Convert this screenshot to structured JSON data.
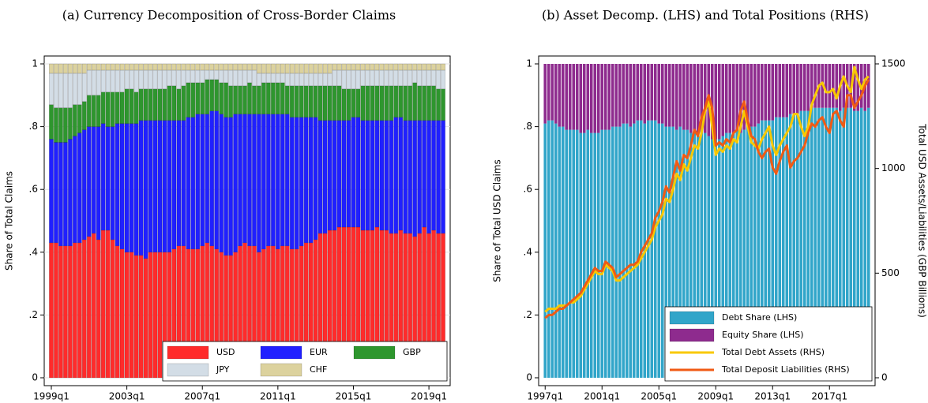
{
  "chart_data": [
    {
      "type": "bar",
      "stacked": true,
      "title": "(a)  Currency Decomposition of Cross-Border Claims",
      "y_label": "Share of Total Claims",
      "grid": true,
      "legend": "lower right",
      "legend_columns": 3,
      "ylim": [
        0,
        1
      ],
      "yticks": [
        0,
        {
          "value": 0.2,
          "label": ".2"
        },
        {
          "value": 0.4,
          "label": ".4"
        },
        {
          "value": 0.6,
          "label": ".6"
        },
        {
          "value": 0.8,
          "label": ".8"
        },
        1
      ],
      "categories": [
        "1999q1",
        null,
        null,
        null,
        null,
        null,
        null,
        null,
        null,
        null,
        null,
        null,
        null,
        null,
        null,
        null,
        "2003q1",
        null,
        null,
        null,
        null,
        null,
        null,
        null,
        null,
        null,
        null,
        null,
        null,
        null,
        null,
        null,
        "2007q1",
        null,
        null,
        null,
        null,
        null,
        null,
        null,
        null,
        null,
        null,
        null,
        null,
        null,
        null,
        null,
        "2011q1",
        null,
        null,
        null,
        null,
        null,
        null,
        null,
        null,
        null,
        null,
        null,
        null,
        null,
        null,
        null,
        "2015q1",
        null,
        null,
        null,
        null,
        null,
        null,
        null,
        null,
        null,
        null,
        null,
        null,
        null,
        null,
        null,
        "2019q1",
        null,
        null,
        null
      ],
      "series": [
        {
          "name": "USD",
          "color": "#ff2b2b",
          "values": [
            0.43,
            0.43,
            0.42,
            0.42,
            0.42,
            0.43,
            0.43,
            0.44,
            0.45,
            0.46,
            0.44,
            0.47,
            0.47,
            0.44,
            0.42,
            0.41,
            0.4,
            0.4,
            0.39,
            0.39,
            0.38,
            0.4,
            0.4,
            0.4,
            0.4,
            0.4,
            0.41,
            0.42,
            0.42,
            0.41,
            0.41,
            0.41,
            0.42,
            0.43,
            0.42,
            0.41,
            0.4,
            0.39,
            0.39,
            0.4,
            0.42,
            0.43,
            0.42,
            0.42,
            0.4,
            0.41,
            0.42,
            0.42,
            0.41,
            0.42,
            0.42,
            0.41,
            0.41,
            0.42,
            0.43,
            0.43,
            0.44,
            0.46,
            0.46,
            0.47,
            0.47,
            0.48,
            0.48,
            0.48,
            0.48,
            0.48,
            0.47,
            0.47,
            0.47,
            0.48,
            0.47,
            0.47,
            0.46,
            0.46,
            0.47,
            0.46,
            0.46,
            0.45,
            0.46,
            0.48,
            0.46,
            0.47,
            0.46,
            0.46
          ]
        },
        {
          "name": "EUR",
          "color": "#2020ff",
          "values": [
            0.33,
            0.32,
            0.33,
            0.33,
            0.34,
            0.34,
            0.35,
            0.35,
            0.35,
            0.34,
            0.36,
            0.34,
            0.33,
            0.36,
            0.39,
            0.4,
            0.41,
            0.41,
            0.42,
            0.43,
            0.44,
            0.42,
            0.42,
            0.42,
            0.42,
            0.42,
            0.41,
            0.4,
            0.4,
            0.42,
            0.42,
            0.43,
            0.42,
            0.41,
            0.43,
            0.44,
            0.44,
            0.44,
            0.44,
            0.44,
            0.42,
            0.41,
            0.42,
            0.42,
            0.44,
            0.43,
            0.42,
            0.42,
            0.43,
            0.42,
            0.42,
            0.42,
            0.42,
            0.41,
            0.4,
            0.4,
            0.39,
            0.36,
            0.36,
            0.35,
            0.35,
            0.34,
            0.34,
            0.34,
            0.35,
            0.35,
            0.35,
            0.35,
            0.35,
            0.34,
            0.35,
            0.35,
            0.36,
            0.37,
            0.36,
            0.36,
            0.36,
            0.37,
            0.36,
            0.34,
            0.36,
            0.35,
            0.36,
            0.36
          ]
        },
        {
          "name": "GBP",
          "color": "#2e962e",
          "values": [
            0.11,
            0.11,
            0.11,
            0.11,
            0.1,
            0.1,
            0.09,
            0.09,
            0.1,
            0.1,
            0.1,
            0.1,
            0.11,
            0.11,
            0.1,
            0.1,
            0.11,
            0.11,
            0.1,
            0.1,
            0.1,
            0.1,
            0.1,
            0.1,
            0.1,
            0.11,
            0.11,
            0.1,
            0.11,
            0.11,
            0.11,
            0.1,
            0.1,
            0.11,
            0.1,
            0.1,
            0.1,
            0.11,
            0.1,
            0.09,
            0.09,
            0.09,
            0.1,
            0.09,
            0.09,
            0.1,
            0.1,
            0.1,
            0.1,
            0.1,
            0.09,
            0.1,
            0.1,
            0.1,
            0.1,
            0.1,
            0.1,
            0.11,
            0.11,
            0.11,
            0.11,
            0.11,
            0.1,
            0.1,
            0.09,
            0.09,
            0.11,
            0.11,
            0.11,
            0.11,
            0.11,
            0.11,
            0.11,
            0.1,
            0.1,
            0.11,
            0.11,
            0.12,
            0.11,
            0.11,
            0.11,
            0.11,
            0.1,
            0.1
          ]
        },
        {
          "name": "JPY",
          "color": "#d3dde6",
          "values": [
            0.1,
            0.11,
            0.11,
            0.11,
            0.11,
            0.1,
            0.1,
            0.09,
            0.08,
            0.08,
            0.08,
            0.07,
            0.07,
            0.07,
            0.07,
            0.07,
            0.06,
            0.06,
            0.07,
            0.06,
            0.06,
            0.06,
            0.06,
            0.06,
            0.06,
            0.05,
            0.05,
            0.06,
            0.05,
            0.04,
            0.04,
            0.04,
            0.04,
            0.03,
            0.03,
            0.03,
            0.04,
            0.04,
            0.05,
            0.05,
            0.05,
            0.05,
            0.04,
            0.05,
            0.04,
            0.03,
            0.03,
            0.03,
            0.03,
            0.03,
            0.04,
            0.04,
            0.04,
            0.04,
            0.04,
            0.04,
            0.04,
            0.04,
            0.04,
            0.04,
            0.05,
            0.05,
            0.06,
            0.06,
            0.06,
            0.06,
            0.05,
            0.05,
            0.05,
            0.05,
            0.05,
            0.05,
            0.05,
            0.05,
            0.05,
            0.05,
            0.05,
            0.04,
            0.05,
            0.05,
            0.05,
            0.05,
            0.06,
            0.06
          ]
        },
        {
          "name": "CHF",
          "color": "#dcd29e",
          "values": [
            0.03,
            0.03,
            0.03,
            0.03,
            0.03,
            0.03,
            0.03,
            0.03,
            0.02,
            0.02,
            0.02,
            0.02,
            0.02,
            0.02,
            0.02,
            0.02,
            0.02,
            0.02,
            0.02,
            0.02,
            0.02,
            0.02,
            0.02,
            0.02,
            0.02,
            0.02,
            0.02,
            0.02,
            0.02,
            0.02,
            0.02,
            0.02,
            0.02,
            0.02,
            0.02,
            0.02,
            0.02,
            0.02,
            0.02,
            0.02,
            0.02,
            0.02,
            0.02,
            0.02,
            0.03,
            0.03,
            0.03,
            0.03,
            0.03,
            0.03,
            0.03,
            0.03,
            0.03,
            0.03,
            0.03,
            0.03,
            0.03,
            0.03,
            0.03,
            0.03,
            0.02,
            0.02,
            0.02,
            0.02,
            0.02,
            0.02,
            0.02,
            0.02,
            0.02,
            0.02,
            0.02,
            0.02,
            0.02,
            0.02,
            0.02,
            0.02,
            0.02,
            0.02,
            0.02,
            0.02,
            0.02,
            0.02,
            0.02,
            0.02
          ]
        }
      ]
    },
    {
      "type": "bar",
      "stacked": true,
      "title": "(b)  Asset Decomp. (LHS) and Total Positions (RHS)",
      "y_label": "Share of Total USD Claims",
      "y2_label": "Total USD Assets/Liabilities (GBP Billions)",
      "grid": false,
      "legend": "lower right",
      "legend_columns": 1,
      "ylim": [
        0,
        1
      ],
      "yticks": [
        0,
        {
          "value": 0.2,
          "label": ".2"
        },
        {
          "value": 0.4,
          "label": ".4"
        },
        {
          "value": 0.6,
          "label": ".6"
        },
        {
          "value": 0.8,
          "label": ".8"
        },
        1
      ],
      "y2lim": [
        0,
        1500
      ],
      "y2ticks": [
        0,
        500,
        1000,
        1500
      ],
      "categories": [
        "1997q1",
        null,
        null,
        null,
        null,
        null,
        null,
        null,
        null,
        null,
        null,
        null,
        null,
        null,
        null,
        null,
        "2001q1",
        null,
        null,
        null,
        null,
        null,
        null,
        null,
        null,
        null,
        null,
        null,
        null,
        null,
        null,
        null,
        "2005q1",
        null,
        null,
        null,
        null,
        null,
        null,
        null,
        null,
        null,
        null,
        null,
        null,
        null,
        null,
        null,
        "2009q1",
        null,
        null,
        null,
        null,
        null,
        null,
        null,
        null,
        null,
        null,
        null,
        null,
        null,
        null,
        null,
        "2013q1",
        null,
        null,
        null,
        null,
        null,
        null,
        null,
        null,
        null,
        null,
        null,
        null,
        null,
        null,
        null,
        "2017q1",
        null,
        null,
        null,
        null,
        null,
        null,
        null,
        null,
        null,
        null,
        null
      ],
      "series": [
        {
          "name": "Debt Share (LHS)",
          "color": "#31a5c9",
          "values": [
            0.81,
            0.82,
            0.82,
            0.81,
            0.8,
            0.8,
            0.79,
            0.79,
            0.79,
            0.79,
            0.78,
            0.78,
            0.79,
            0.78,
            0.78,
            0.78,
            0.79,
            0.79,
            0.79,
            0.8,
            0.8,
            0.8,
            0.81,
            0.81,
            0.8,
            0.81,
            0.82,
            0.82,
            0.81,
            0.82,
            0.82,
            0.82,
            0.81,
            0.81,
            0.8,
            0.8,
            0.8,
            0.79,
            0.8,
            0.79,
            0.79,
            0.78,
            0.78,
            0.78,
            0.79,
            0.78,
            0.77,
            0.76,
            0.76,
            0.76,
            0.77,
            0.78,
            0.78,
            0.78,
            0.79,
            0.78,
            0.79,
            0.8,
            0.8,
            0.8,
            0.81,
            0.82,
            0.82,
            0.82,
            0.82,
            0.83,
            0.83,
            0.83,
            0.83,
            0.84,
            0.84,
            0.84,
            0.85,
            0.85,
            0.85,
            0.86,
            0.86,
            0.86,
            0.86,
            0.86,
            0.86,
            0.86,
            0.86,
            0.85,
            0.86,
            0.86,
            0.86,
            0.85,
            0.85,
            0.86,
            0.85,
            0.86
          ]
        },
        {
          "name": "Equity Share (LHS)",
          "color": "#8e2b8e",
          "values": [
            0.19,
            0.18,
            0.18,
            0.19,
            0.2,
            0.2,
            0.21,
            0.21,
            0.21,
            0.21,
            0.22,
            0.22,
            0.21,
            0.22,
            0.22,
            0.22,
            0.21,
            0.21,
            0.21,
            0.2,
            0.2,
            0.2,
            0.19,
            0.19,
            0.2,
            0.19,
            0.18,
            0.18,
            0.19,
            0.18,
            0.18,
            0.18,
            0.19,
            0.19,
            0.2,
            0.2,
            0.2,
            0.21,
            0.2,
            0.21,
            0.21,
            0.22,
            0.22,
            0.22,
            0.21,
            0.22,
            0.23,
            0.24,
            0.24,
            0.24,
            0.23,
            0.22,
            0.22,
            0.22,
            0.21,
            0.22,
            0.21,
            0.2,
            0.2,
            0.2,
            0.19,
            0.18,
            0.18,
            0.18,
            0.18,
            0.17,
            0.17,
            0.17,
            0.17,
            0.16,
            0.16,
            0.16,
            0.15,
            0.15,
            0.15,
            0.14,
            0.14,
            0.14,
            0.14,
            0.14,
            0.14,
            0.14,
            0.14,
            0.15,
            0.14,
            0.14,
            0.14,
            0.15,
            0.15,
            0.14,
            0.15,
            0.14
          ]
        },
        {
          "name": "Total Debt Assets (RHS)",
          "color": "#f8c800",
          "axis": "y2",
          "type": "line",
          "values": [
            315,
            330,
            330,
            330,
            345,
            345,
            345,
            360,
            360,
            375,
            390,
            420,
            450,
            480,
            510,
            495,
            495,
            540,
            525,
            510,
            465,
            465,
            480,
            495,
            510,
            525,
            540,
            570,
            600,
            630,
            660,
            720,
            750,
            780,
            855,
            840,
            900,
            975,
            945,
            1020,
            990,
            1050,
            1110,
            1095,
            1170,
            1275,
            1320,
            1200,
            1065,
            1095,
            1080,
            1110,
            1095,
            1140,
            1125,
            1200,
            1275,
            1200,
            1125,
            1110,
            1095,
            1140,
            1170,
            1200,
            1110,
            1065,
            1110,
            1140,
            1170,
            1200,
            1260,
            1260,
            1200,
            1155,
            1200,
            1305,
            1350,
            1395,
            1410,
            1365,
            1365,
            1380,
            1335,
            1395,
            1440,
            1395,
            1365,
            1485,
            1425,
            1380,
            1425,
            1440
          ]
        },
        {
          "name": "Total Deposit Liabilities (RHS)",
          "color": "#f05a14",
          "axis": "y2",
          "type": "line",
          "values": [
            285,
            300,
            300,
            315,
            330,
            330,
            345,
            360,
            375,
            390,
            405,
            435,
            465,
            495,
            525,
            510,
            510,
            555,
            540,
            525,
            480,
            495,
            510,
            525,
            540,
            540,
            555,
            600,
            630,
            660,
            690,
            765,
            795,
            840,
            915,
            885,
            960,
            1035,
            990,
            1065,
            1050,
            1110,
            1185,
            1155,
            1245,
            1290,
            1350,
            1290,
            1110,
            1125,
            1110,
            1140,
            1125,
            1170,
            1185,
            1275,
            1320,
            1230,
            1155,
            1140,
            1080,
            1050,
            1080,
            1095,
            1005,
            975,
            1035,
            1080,
            1110,
            1005,
            1035,
            1050,
            1080,
            1110,
            1170,
            1215,
            1200,
            1230,
            1245,
            1200,
            1170,
            1260,
            1275,
            1230,
            1200,
            1350,
            1350,
            1290,
            1320,
            1350,
            1395,
            1425
          ]
        }
      ]
    }
  ]
}
